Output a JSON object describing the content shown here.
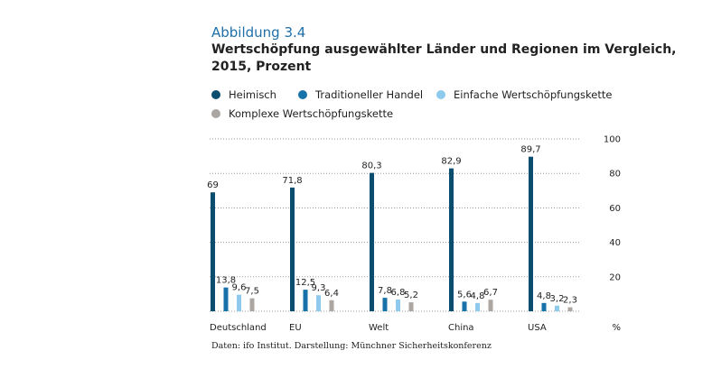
{
  "figure_label": "Abbildung 3.4",
  "title_line1": "Wertschöpfung ausgewählter Länder und Regionen im Vergleich,",
  "title_line2": "2015, Prozent",
  "source": "Daten: ifo Institut. Darstellung: Münchner Sicherheitskonferenz",
  "colors": {
    "accent": "#1f6fa8"
  },
  "chart_data": {
    "type": "bar",
    "categories": [
      "Deutschland",
      "EU",
      "Welt",
      "China",
      "USA"
    ],
    "series": [
      {
        "name": "Heimisch",
        "color": "#0b4d6e",
        "values": [
          69,
          71.8,
          80.3,
          82.9,
          89.7
        ],
        "labels": [
          "69",
          "71,8",
          "80,3",
          "82,9",
          "89,7"
        ]
      },
      {
        "name": "Traditioneller Handel",
        "color": "#1672a9",
        "values": [
          13.8,
          12.5,
          7.8,
          5.6,
          4.8
        ],
        "labels": [
          "13,8",
          "12,5",
          "7,8",
          "5,6",
          "4,8"
        ]
      },
      {
        "name": "Einfache Wertschöpfungskette",
        "color": "#8dcaee",
        "values": [
          9.6,
          9.3,
          6.8,
          4.8,
          3.2
        ],
        "labels": [
          "9,6",
          "9,3",
          "6,8",
          "4,8",
          "3,2"
        ]
      },
      {
        "name": "Komplexe Wertschöpfungskette",
        "color": "#aba6a1",
        "values": [
          7.5,
          6.4,
          5.2,
          6.7,
          2.3
        ],
        "labels": [
          "7,5",
          "6,4",
          "5,2",
          "6,7",
          "2,3"
        ]
      }
    ],
    "yticks": [
      20,
      40,
      60,
      80,
      100
    ],
    "ylabel": "%",
    "ylim": [
      0,
      100
    ],
    "grid": true,
    "gridstyle": "dotted",
    "legend": "top",
    "yaxis_side": "right"
  }
}
